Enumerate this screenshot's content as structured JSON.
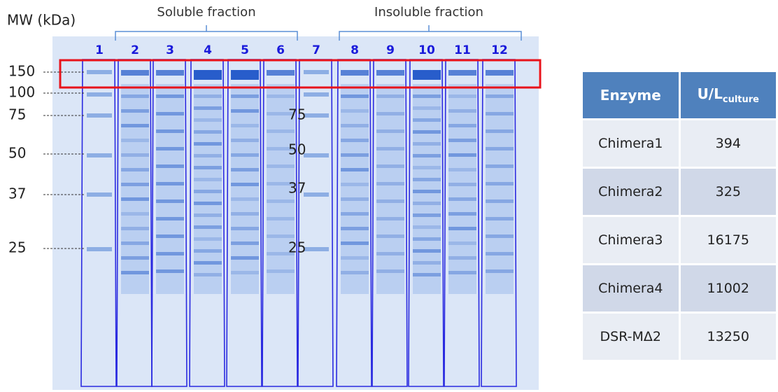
{
  "figure": {
    "mw_label": "MW (kDa)",
    "groups": [
      "Soluble fraction",
      "Insoluble fraction"
    ],
    "lanes": [
      "1",
      "2",
      "3",
      "4",
      "5",
      "6",
      "7",
      "8",
      "9",
      "10",
      "11",
      "12"
    ],
    "markers": [
      "150",
      "100",
      "75",
      "50",
      "37",
      "25"
    ],
    "inner_markers": [
      "75",
      "50",
      "37",
      "25"
    ]
  },
  "table": {
    "header": {
      "enzyme": "Enzyme",
      "activity": {
        "main": "U/L",
        "sub": "culture"
      }
    },
    "rows": [
      [
        "Chimera1",
        "394"
      ],
      [
        "Chimera2",
        "325"
      ],
      [
        "Chimera3",
        "16175"
      ],
      [
        "Chimera4",
        "11002"
      ],
      [
        "DSR-MΔ2",
        "13250"
      ]
    ]
  }
}
